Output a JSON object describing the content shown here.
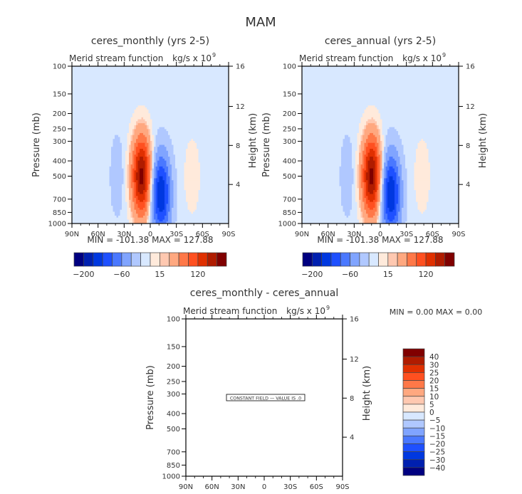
{
  "page_title": "MAM",
  "chart_data": [
    {
      "type": "heatmap",
      "subtype": "contour",
      "title": "ceres_monthly (yrs 2-5)",
      "left_string": "Merid stream function",
      "right_string": "kg/s x 10",
      "right_string_exponent": "9",
      "xlabel": "",
      "ylabel": "Pressure (mb)",
      "ylabel_right": "Height (km)",
      "x_ticks": [
        "90N",
        "60N",
        "30N",
        "0",
        "30S",
        "60S",
        "90S"
      ],
      "x_range": [
        90,
        -90
      ],
      "y_ticks": [
        100,
        150,
        200,
        250,
        300,
        400,
        500,
        700,
        850,
        1000
      ],
      "y_range": [
        100,
        1000
      ],
      "y_scale": "log",
      "y_right_ticks": [
        4,
        8,
        12,
        16
      ],
      "min_label": "MIN = -101.38",
      "max_label": "MAX = 127.88",
      "min": -101.38,
      "max": 127.88,
      "colorbar": {
        "orientation": "horizontal",
        "colors": [
          "#000080",
          "#0020b0",
          "#0038e0",
          "#1e50ff",
          "#4a78ff",
          "#80a4ff",
          "#b0c8ff",
          "#d8e8ff",
          "#ffeadb",
          "#ffc8b0",
          "#ffa880",
          "#ff7848",
          "#ff5020",
          "#e03000",
          "#b01c00",
          "#800000"
        ],
        "tick_labels": [
          "-200",
          "-60",
          "15",
          "120"
        ]
      },
      "features": [
        {
          "name": "NH Hadley cell",
          "sign": "positive",
          "lat_center": 10,
          "lat_width": 14,
          "peak_p": 500,
          "peak": 127.88
        },
        {
          "name": "SH Hadley cell",
          "sign": "negative",
          "lat_center": -12,
          "lat_width": 14,
          "peak_p": 650,
          "peak": -101.38
        },
        {
          "name": "NH Ferrel cell",
          "sign": "negative",
          "lat_center": 38,
          "lat_width": 10,
          "peak_p": 500,
          "peak": -15
        },
        {
          "name": "SH Ferrel cell",
          "sign": "positive",
          "lat_center": -48,
          "lat_width": 12,
          "peak_p": 500,
          "peak": 12
        }
      ]
    },
    {
      "type": "heatmap",
      "subtype": "contour",
      "title": "ceres_annual (yrs 2-5)",
      "left_string": "Merid stream function",
      "right_string": "kg/s x 10",
      "right_string_exponent": "9",
      "xlabel": "",
      "ylabel": "Pressure (mb)",
      "ylabel_right": "Height (km)",
      "x_ticks": [
        "90N",
        "60N",
        "30N",
        "0",
        "30S",
        "60S",
        "90S"
      ],
      "x_range": [
        90,
        -90
      ],
      "y_ticks": [
        100,
        150,
        200,
        250,
        300,
        400,
        500,
        700,
        850,
        1000
      ],
      "y_range": [
        100,
        1000
      ],
      "y_scale": "log",
      "y_right_ticks": [
        4,
        8,
        12,
        16
      ],
      "min_label": "MIN = -101.38",
      "max_label": "MAX = 127.88",
      "min": -101.38,
      "max": 127.88,
      "colorbar": {
        "orientation": "horizontal",
        "colors": [
          "#000080",
          "#0020b0",
          "#0038e0",
          "#1e50ff",
          "#4a78ff",
          "#80a4ff",
          "#b0c8ff",
          "#d8e8ff",
          "#ffeadb",
          "#ffc8b0",
          "#ffa880",
          "#ff7848",
          "#ff5020",
          "#e03000",
          "#b01c00",
          "#800000"
        ],
        "tick_labels": [
          "-200",
          "-60",
          "15",
          "120"
        ]
      },
      "features": [
        {
          "name": "NH Hadley cell",
          "sign": "positive",
          "lat_center": 10,
          "lat_width": 14,
          "peak_p": 500,
          "peak": 127.88
        },
        {
          "name": "SH Hadley cell",
          "sign": "negative",
          "lat_center": -12,
          "lat_width": 14,
          "peak_p": 650,
          "peak": -101.38
        },
        {
          "name": "NH Ferrel cell",
          "sign": "negative",
          "lat_center": 38,
          "lat_width": 10,
          "peak_p": 500,
          "peak": -15
        },
        {
          "name": "SH Ferrel cell",
          "sign": "positive",
          "lat_center": -48,
          "lat_width": 12,
          "peak_p": 500,
          "peak": 12
        }
      ]
    },
    {
      "type": "heatmap",
      "subtype": "contour",
      "title": "ceres_monthly - ceres_annual",
      "left_string": "Merid stream function",
      "right_string": "kg/s x 10",
      "right_string_exponent": "9",
      "xlabel": "",
      "ylabel": "Pressure (mb)",
      "ylabel_right": "Height (km)",
      "x_ticks": [
        "90N",
        "60N",
        "30N",
        "0",
        "30S",
        "60S",
        "90S"
      ],
      "x_range": [
        90,
        -90
      ],
      "y_ticks": [
        100,
        150,
        200,
        250,
        300,
        400,
        500,
        700,
        850,
        1000
      ],
      "y_range": [
        100,
        1000
      ],
      "y_scale": "log",
      "y_right_ticks": [
        4,
        8,
        12,
        16
      ],
      "min_label": "MIN =    0.00",
      "max_label": "MAX =    0.00",
      "min": 0.0,
      "max": 0.0,
      "annotation": "CONSTANT FIELD - VALUE IS 0",
      "annotation_display": "CONSTANT FIELD — VALUE IS .0",
      "colorbar": {
        "orientation": "vertical",
        "colors": [
          "#800000",
          "#b01c00",
          "#e03000",
          "#ff5020",
          "#ff7848",
          "#ffa880",
          "#ffc8b0",
          "#ffeadb",
          "#d8e8ff",
          "#b0c8ff",
          "#80a4ff",
          "#4a78ff",
          "#1e50ff",
          "#0038e0",
          "#0020b0",
          "#000080"
        ],
        "tick_labels": [
          "40",
          "30",
          "25",
          "20",
          "15",
          "10",
          "5",
          "0",
          "-5",
          "-10",
          "-15",
          "-20",
          "-25",
          "-30",
          "-40"
        ]
      },
      "features": []
    }
  ]
}
